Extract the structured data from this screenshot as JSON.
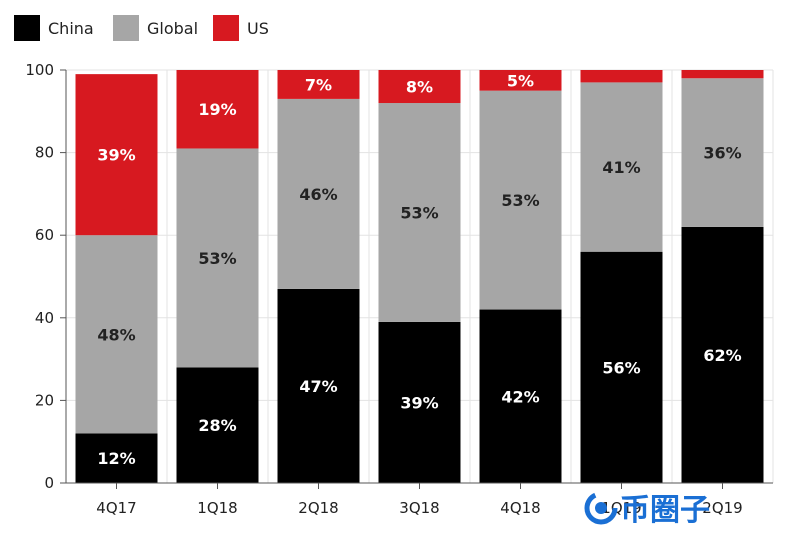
{
  "chart_data": {
    "type": "bar",
    "stacked": true,
    "title": "",
    "xlabel": "",
    "ylabel": "",
    "ylim": [
      0,
      100
    ],
    "yticks": [
      0,
      20,
      40,
      60,
      80,
      100
    ],
    "grid": true,
    "legend_position": "top-left",
    "categories": [
      "4Q17",
      "1Q18",
      "2Q18",
      "3Q18",
      "4Q18",
      "1Q19",
      "2Q19"
    ],
    "series": [
      {
        "name": "China",
        "color": "#000000",
        "label_color": "#ffffff",
        "values": [
          12,
          28,
          47,
          39,
          42,
          56,
          62
        ],
        "labels": [
          "12%",
          "28%",
          "47%",
          "39%",
          "42%",
          "56%",
          "62%"
        ]
      },
      {
        "name": "Global",
        "color": "#a6a6a6",
        "label_color": "#222222",
        "values": [
          48,
          53,
          46,
          53,
          53,
          41,
          36
        ],
        "labels": [
          "48%",
          "53%",
          "46%",
          "53%",
          "53%",
          "41%",
          "36%"
        ]
      },
      {
        "name": "US",
        "color": "#d71920",
        "label_color": "#ffffff",
        "values": [
          39,
          19,
          7,
          8,
          5,
          3,
          3
        ],
        "labels": [
          "39%",
          "19%",
          "7%",
          "8%",
          "5%",
          "",
          ""
        ]
      }
    ]
  },
  "watermark": {
    "text": "币圈子",
    "color": "#1a6fd4"
  }
}
